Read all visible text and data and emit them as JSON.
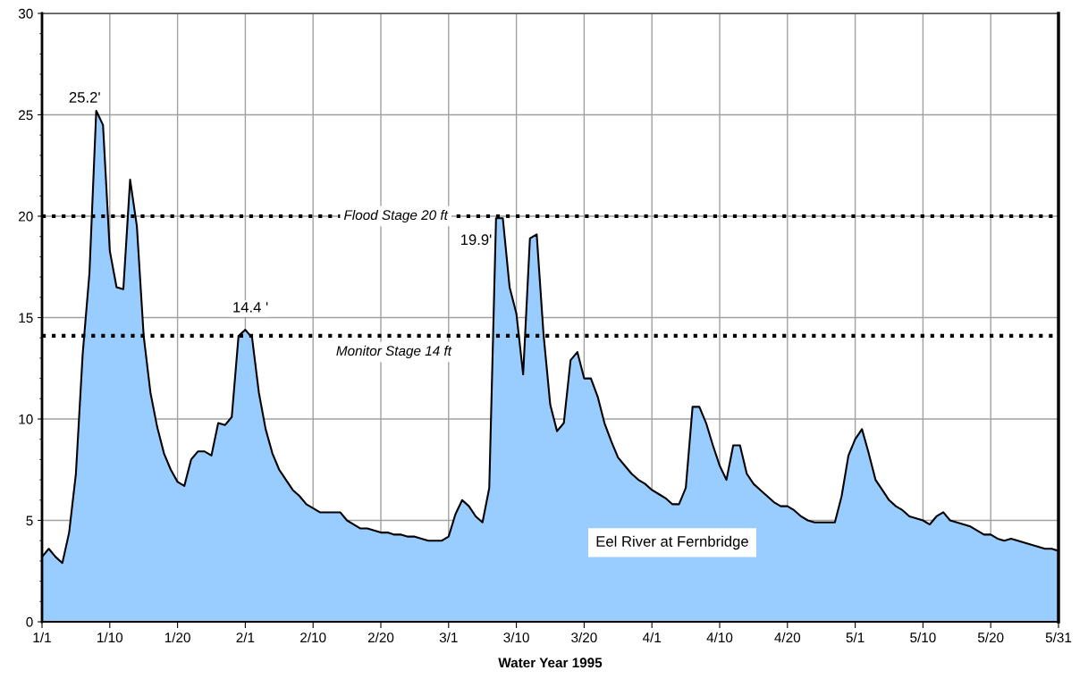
{
  "chart_data": {
    "type": "area",
    "xlabel": "Water Year 1995",
    "categories": [
      "1/1",
      null,
      null,
      null,
      null,
      null,
      null,
      null,
      null,
      null,
      "1/10",
      null,
      null,
      null,
      null,
      null,
      null,
      null,
      null,
      null,
      "1/20",
      null,
      null,
      null,
      null,
      null,
      null,
      null,
      null,
      null,
      "2/1",
      null,
      null,
      null,
      null,
      null,
      null,
      null,
      null,
      null,
      "2/10",
      null,
      null,
      null,
      null,
      null,
      null,
      null,
      null,
      null,
      "2/20",
      null,
      null,
      null,
      null,
      null,
      null,
      null,
      null,
      null,
      "3/1",
      null,
      null,
      null,
      null,
      null,
      null,
      null,
      null,
      null,
      "3/10",
      null,
      null,
      null,
      null,
      null,
      null,
      null,
      null,
      null,
      "3/20",
      null,
      null,
      null,
      null,
      null,
      null,
      null,
      null,
      null,
      "4/1",
      null,
      null,
      null,
      null,
      null,
      null,
      null,
      null,
      null,
      "4/10",
      null,
      null,
      null,
      null,
      null,
      null,
      null,
      null,
      null,
      "4/20",
      null,
      null,
      null,
      null,
      null,
      null,
      null,
      null,
      null,
      "5/1",
      null,
      null,
      null,
      null,
      null,
      null,
      null,
      null,
      null,
      "5/10",
      null,
      null,
      null,
      null,
      null,
      null,
      null,
      null,
      null,
      "5/20",
      null,
      null,
      null,
      null,
      null,
      null,
      null,
      null,
      null,
      "5/31"
    ],
    "series": [
      {
        "name": "Eel River at Fernbridge",
        "color": "#99ccff",
        "values": [
          3.2,
          3.6,
          3.2,
          2.9,
          4.4,
          7.3,
          13.2,
          17.2,
          25.2,
          24.5,
          18.3,
          16.5,
          16.4,
          21.8,
          19.5,
          14.1,
          11.3,
          9.6,
          8.3,
          7.5,
          6.9,
          6.7,
          8.0,
          8.4,
          8.4,
          8.2,
          9.8,
          9.7,
          10.1,
          14.1,
          14.4,
          14.0,
          11.3,
          9.5,
          8.3,
          7.5,
          7.0,
          6.5,
          6.2,
          5.8,
          5.6,
          5.4,
          5.4,
          5.4,
          5.4,
          5.0,
          4.8,
          4.6,
          4.6,
          4.5,
          4.4,
          4.4,
          4.3,
          4.3,
          4.2,
          4.2,
          4.1,
          4.0,
          4.0,
          4.0,
          4.2,
          5.3,
          6.0,
          5.7,
          5.2,
          4.9,
          6.6,
          19.9,
          19.9,
          16.5,
          15.2,
          12.2,
          18.9,
          19.1,
          14.2,
          10.7,
          9.4,
          9.8,
          12.9,
          13.3,
          12.0,
          12.0,
          11.1,
          9.8,
          8.9,
          8.1,
          7.7,
          7.3,
          7.0,
          6.8,
          6.5,
          6.3,
          6.1,
          5.8,
          5.8,
          6.6,
          10.6,
          10.6,
          9.8,
          8.7,
          7.7,
          7.0,
          8.7,
          8.7,
          7.3,
          6.8,
          6.5,
          6.2,
          5.9,
          5.7,
          5.7,
          5.5,
          5.2,
          5.0,
          4.9,
          4.9,
          4.9,
          4.9,
          6.2,
          8.2,
          9.0,
          9.5,
          8.3,
          7.0,
          6.5,
          6.0,
          5.7,
          5.5,
          5.2,
          5.1,
          5.0,
          4.8,
          5.2,
          5.4,
          5.0,
          4.9,
          4.8,
          4.7,
          4.5,
          4.3,
          4.3,
          4.1,
          4.0,
          4.1,
          4.0,
          3.9,
          3.8,
          3.7,
          3.6,
          3.6,
          3.5
        ]
      }
    ],
    "ylim": [
      0,
      30
    ],
    "yticks": [
      0,
      5,
      10,
      15,
      20,
      25,
      30
    ],
    "grid": true,
    "legend": false,
    "ref_lines": [
      {
        "axis": "y",
        "value": 20,
        "label": "Flood Stage 20 ft",
        "line_style": "dotted",
        "color": "#000000"
      },
      {
        "axis": "y",
        "value": 14.1,
        "label": "Monitor Stage 14 ft",
        "line_style": "dotted",
        "color": "#000000"
      }
    ],
    "annotations": [
      "25.2'",
      "14.4 '",
      "19.9'"
    ]
  }
}
